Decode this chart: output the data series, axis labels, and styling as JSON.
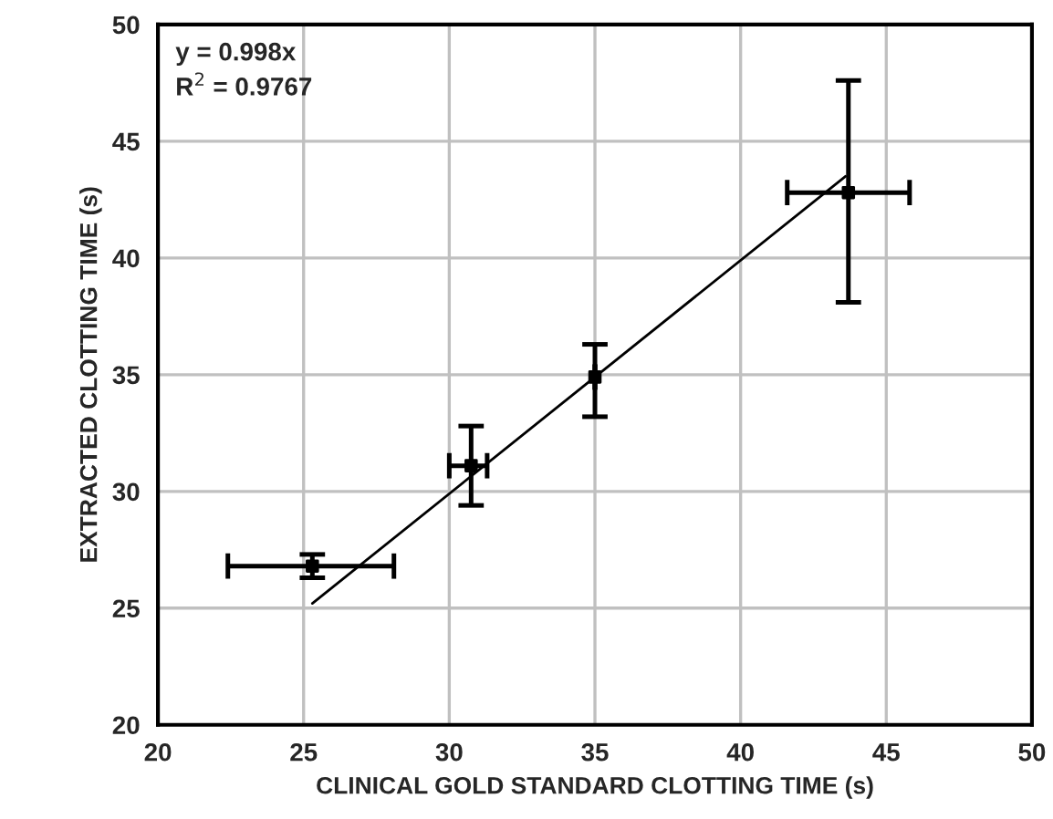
{
  "chart_data": {
    "type": "scatter",
    "xlabel": "CLINICAL GOLD STANDARD CLOTTING TIME (s)",
    "ylabel": "EXTRACTED CLOTTING TIME (s)",
    "annotations": [
      "y = 0.998x",
      "R$^{2}$ = 0.9767"
    ],
    "xlim": [
      20,
      50
    ],
    "xticks": [
      20,
      25,
      30,
      35,
      40,
      45,
      50
    ],
    "ylim": [
      20,
      50
    ],
    "yticks": [
      20,
      25,
      30,
      35,
      40,
      45,
      50
    ],
    "grid": true,
    "series": [
      {
        "marker": "square",
        "color": "#000000",
        "x": [
          25.3,
          30.75,
          35.0,
          43.7
        ],
        "values": [
          26.8,
          31.1,
          34.9,
          42.8
        ],
        "errors": [
          [
            26.3,
            27.3
          ],
          [
            29.4,
            32.8
          ],
          [
            33.2,
            36.3
          ],
          [
            38.1,
            47.6
          ]
        ],
        "xerrors": [
          [
            22.4,
            28.1
          ],
          [
            30.0,
            31.3
          ],
          null,
          [
            41.6,
            45.8
          ]
        ]
      },
      {
        "type": "line",
        "color": "#000000",
        "x": [
          25.3,
          43.6
        ],
        "values": [
          25.2,
          43.5
        ]
      }
    ]
  }
}
